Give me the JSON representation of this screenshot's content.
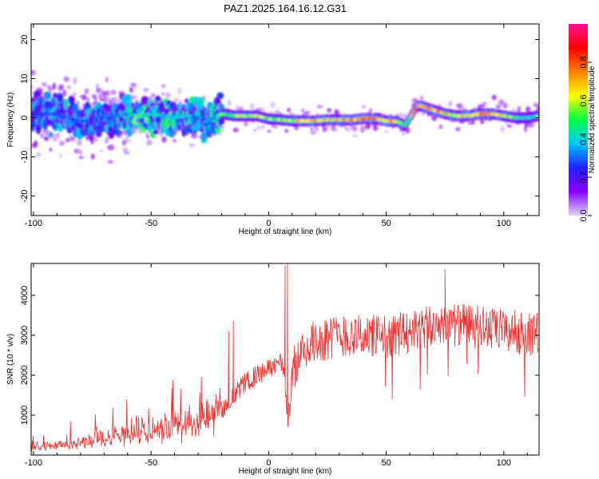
{
  "title": "PAZ1.2025.164.16.12.G31",
  "chart_data": [
    {
      "type": "heatmap",
      "xlabel": "Height of straight line (km)",
      "ylabel": "Frequency (Hz)",
      "xlim": [
        -101,
        115
      ],
      "ylim": [
        -25,
        24
      ],
      "xticks": [
        -100,
        -50,
        0,
        50,
        100
      ],
      "yticks": [
        -20,
        -10,
        0,
        10,
        20
      ],
      "colorbar": {
        "label": "Normalized spectral amplitude",
        "range": [
          0.0,
          1.0
        ],
        "ticks": [
          0.0,
          0.2,
          0.4,
          0.6,
          0.8
        ],
        "colors": [
          "#dcd6f6",
          "#8800ff",
          "#2020ff",
          "#00c8ff",
          "#00ff40",
          "#ffff00",
          "#ff8000",
          "#ff0000",
          "#ff1090"
        ]
      },
      "ridge": {
        "x": [
          -100,
          -90,
          -80,
          -70,
          -60,
          -55,
          -50,
          -45,
          -40,
          -35,
          -30,
          -25,
          -20,
          -15,
          -10,
          -5,
          0,
          5,
          10,
          15,
          20,
          25,
          30,
          35,
          40,
          45,
          50,
          55,
          58,
          60,
          63,
          65,
          70,
          75,
          80,
          85,
          90,
          95,
          100,
          105,
          110,
          115
        ],
        "y": [
          1,
          1,
          -1,
          0,
          1,
          0.5,
          1,
          0.5,
          0,
          0.5,
          0,
          -0.5,
          1,
          0.5,
          0.5,
          0.5,
          -0.3,
          -0.5,
          -0.8,
          -0.8,
          -0.8,
          -0.5,
          -0.5,
          -0.6,
          -0.2,
          -0.2,
          -0.8,
          -1,
          -2,
          0,
          3,
          3,
          2,
          1,
          0.5,
          0.5,
          1,
          1,
          0.5,
          0,
          0,
          0.5
        ],
        "amplitude": [
          0.25,
          0.3,
          0.3,
          0.3,
          0.35,
          0.55,
          0.45,
          0.4,
          0.45,
          0.4,
          0.35,
          0.35,
          0.55,
          0.6,
          0.6,
          0.6,
          0.55,
          0.6,
          0.65,
          0.7,
          0.75,
          0.7,
          0.7,
          0.75,
          0.85,
          0.8,
          0.75,
          0.7,
          0.6,
          0.7,
          0.8,
          0.75,
          0.75,
          0.7,
          0.7,
          0.75,
          0.8,
          0.7,
          0.65,
          0.55,
          0.45,
          0.55
        ]
      }
    },
    {
      "type": "line",
      "xlabel": "Height of straight line (km)",
      "ylabel": "SNR (10 * v/v)",
      "xlim": [
        -101,
        115
      ],
      "ylim": [
        0,
        4800
      ],
      "xticks": [
        -100,
        -50,
        0,
        50,
        100
      ],
      "yticks": [
        1000,
        2000,
        3000,
        4000
      ],
      "series": [
        {
          "color": "#ee3030",
          "x": [
            -100,
            -90,
            -80,
            -70,
            -60,
            -50,
            -40,
            -30,
            -25,
            -20,
            -17,
            -15,
            -12,
            -10,
            -5,
            0,
            3,
            5,
            6,
            7,
            8,
            9,
            10,
            12,
            15,
            20,
            30,
            40,
            50,
            60,
            70,
            75,
            80,
            90,
            100,
            110,
            115
          ],
          "mean": [
            180,
            230,
            300,
            400,
            500,
            600,
            700,
            850,
            950,
            1150,
            1350,
            1450,
            1700,
            1800,
            2000,
            2150,
            2250,
            2350,
            2200,
            1800,
            900,
            1200,
            2100,
            2300,
            2650,
            2850,
            3000,
            3000,
            2950,
            3100,
            3200,
            3350,
            3250,
            3200,
            3100,
            3050,
            3000
          ],
          "spike_x": [
            -17,
            -15,
            7,
            8,
            75
          ],
          "spike_y": [
            3100,
            3350,
            4750,
            4800,
            4650
          ]
        }
      ]
    }
  ]
}
